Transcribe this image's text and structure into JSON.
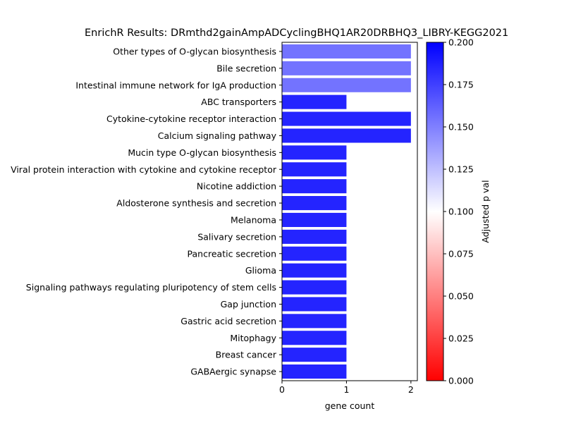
{
  "chart_data": {
    "type": "bar",
    "orientation": "horizontal",
    "title": "EnrichR Results: DRmthd2gainAmpADCyclingBHQ1AR20DRBHQ3_LIBRY-KEGG2021",
    "xlabel": "gene count",
    "ylabel": "",
    "xlim": [
      0,
      2.1
    ],
    "x_ticks": [
      "0",
      "1",
      "2"
    ],
    "categories": [
      "Other types of O-glycan biosynthesis",
      "Bile secretion",
      "Intestinal immune network for IgA production",
      "ABC transporters",
      "Cytokine-cytokine receptor interaction",
      "Calcium signaling pathway",
      "Mucin type O-glycan biosynthesis",
      "Viral protein interaction with cytokine and cytokine receptor",
      "Nicotine addiction",
      "Aldosterone synthesis and secretion",
      "Melanoma",
      "Salivary secretion",
      "Pancreatic secretion",
      "Glioma",
      "Signaling pathways regulating pluripotency of stem cells",
      "Gap junction",
      "Gastric acid secretion",
      "Mitophagy",
      "Breast cancer",
      "GABAergic synapse"
    ],
    "values": [
      2,
      2,
      2,
      1,
      2,
      2,
      1,
      1,
      1,
      1,
      1,
      1,
      1,
      1,
      1,
      1,
      1,
      1,
      1,
      1
    ],
    "adjusted_p_values": [
      0.155,
      0.155,
      0.155,
      0.186,
      0.186,
      0.186,
      0.186,
      0.186,
      0.186,
      0.186,
      0.186,
      0.186,
      0.186,
      0.186,
      0.186,
      0.186,
      0.186,
      0.186,
      0.186,
      0.186
    ],
    "colorbar": {
      "label": "Adjusted p val",
      "range": [
        0,
        0.2
      ],
      "colormap": "bwr_r",
      "ticks": [
        "0.000",
        "0.025",
        "0.050",
        "0.075",
        "0.100",
        "0.125",
        "0.150",
        "0.175",
        "0.200"
      ],
      "colors": [
        "#ff0000",
        "#ffffff",
        "#0000ff"
      ]
    },
    "grid": false,
    "legend": "none"
  }
}
